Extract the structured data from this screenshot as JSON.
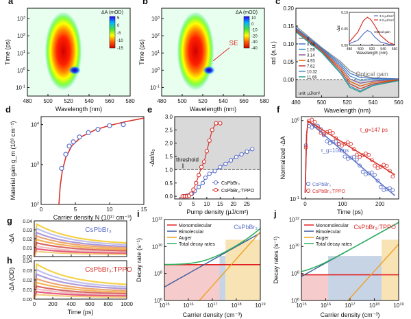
{
  "figure": {
    "panel_labels": [
      "a",
      "b",
      "c",
      "d",
      "e",
      "f",
      "g",
      "h",
      "i",
      "j"
    ]
  },
  "chart_data": [
    {
      "panel": "a",
      "type": "heatmap",
      "xlabel": "Wavelength (nm)",
      "ylabel": "Time (ps)",
      "x_ticks": [
        480,
        500,
        520,
        540,
        560,
        580
      ],
      "y_ticks": [
        "10^-1",
        "10^0",
        "10^1",
        "10^2",
        "10^3"
      ],
      "xlim": [
        480,
        580
      ],
      "ylim_log": [
        -1.5,
        3.6
      ],
      "colorbar_title": "ΔA (mOD)",
      "colorbar_ticks": [
        "5",
        "0",
        "-5",
        "-10",
        "-15"
      ],
      "features": [
        {
          "kind": "bleach",
          "center_nm": 515,
          "min_mOD": -15,
          "log_t_range": [
            -0.3,
            3.0
          ]
        },
        {
          "kind": "induced_absorption",
          "center_nm": 526,
          "log_t": 0.0,
          "max_mOD": 5
        }
      ]
    },
    {
      "panel": "b",
      "type": "heatmap",
      "xlabel": "Wavelength (nm)",
      "ylabel": "Time (ps)",
      "x_ticks": [
        480,
        500,
        520,
        540,
        560,
        580
      ],
      "y_ticks": [
        "10^-1",
        "10^0",
        "10^1",
        "10^2",
        "10^3"
      ],
      "xlim": [
        480,
        580
      ],
      "ylim_log": [
        -1.5,
        3.6
      ],
      "colorbar_title": "ΔA (mOD)",
      "colorbar_ticks": [
        "10",
        "0",
        "-10",
        "-20",
        "-30",
        "-40"
      ],
      "annotation": "SE",
      "features": [
        {
          "kind": "bleach",
          "center_nm": 513,
          "min_mOD": -40,
          "log_t_range": [
            -0.3,
            3.0
          ]
        },
        {
          "kind": "induced_absorption",
          "center_nm": 526,
          "log_t": 0.0,
          "max_mOD": 10
        }
      ]
    },
    {
      "panel": "c",
      "type": "line",
      "xlabel": "Wavelength (nm)",
      "ylabel": "αd (a.u.)",
      "xlim": [
        480,
        560
      ],
      "ylim": [
        -0.05,
        0.2
      ],
      "x_ticks": [
        480,
        500,
        520,
        540,
        560
      ],
      "y_ticks": [
        0.0,
        0.05,
        0.1,
        0.15,
        0.2
      ],
      "legend_values": [
        "0",
        "0.68",
        "1.59",
        "3.14",
        "4.93",
        "7.62",
        "10.32",
        "11.66"
      ],
      "legend_unit": "unit: μJ/cm²",
      "annotation": "Optical gain",
      "series_colors": [
        "#888888",
        "#4472c4",
        "#2e8bc0",
        "#8a5a9c",
        "#e06000",
        "#c0392b",
        "#5b8db8",
        "#2a9d8f"
      ],
      "series": [
        {
          "name": "0",
          "x": [
            480,
            500,
            515,
            522,
            530,
            540,
            560
          ],
          "values": [
            0.15,
            0.09,
            0.05,
            0.025,
            0.012,
            0.005,
            0.002
          ]
        },
        {
          "name": "0.68",
          "x": [
            480,
            500,
            515,
            522,
            530,
            540,
            560
          ],
          "values": [
            0.145,
            0.088,
            0.045,
            0.018,
            0.006,
            0.003,
            0.002
          ]
        },
        {
          "name": "1.59",
          "x": [
            480,
            500,
            515,
            522,
            530,
            540,
            560
          ],
          "values": [
            0.143,
            0.086,
            0.04,
            0.01,
            -0.002,
            0.0,
            0.001
          ]
        },
        {
          "name": "3.14",
          "x": [
            480,
            500,
            515,
            522,
            530,
            540,
            560
          ],
          "values": [
            0.141,
            0.084,
            0.035,
            0.002,
            -0.01,
            -0.004,
            0.0
          ]
        },
        {
          "name": "4.93",
          "x": [
            480,
            500,
            515,
            522,
            530,
            540,
            560
          ],
          "values": [
            0.139,
            0.082,
            0.03,
            -0.005,
            -0.018,
            -0.008,
            -0.001
          ]
        },
        {
          "name": "7.62",
          "x": [
            480,
            500,
            515,
            522,
            530,
            540,
            560
          ],
          "values": [
            0.137,
            0.08,
            0.025,
            -0.012,
            -0.026,
            -0.012,
            -0.002
          ]
        },
        {
          "name": "10.32",
          "x": [
            480,
            500,
            515,
            522,
            530,
            540,
            560
          ],
          "values": [
            0.135,
            0.078,
            0.02,
            -0.018,
            -0.032,
            -0.015,
            -0.003
          ]
        },
        {
          "name": "11.66",
          "x": [
            480,
            500,
            515,
            522,
            530,
            540,
            560
          ],
          "values": [
            0.133,
            0.076,
            0.016,
            -0.022,
            -0.035,
            -0.017,
            -0.003
          ]
        }
      ],
      "inset": {
        "xlabel": "Wavelength (nm)",
        "ylabel": "-Δα",
        "xlim": [
          480,
          560
        ],
        "ylim": [
          0,
          0.1
        ],
        "x_ticks": [
          480,
          500,
          520,
          540,
          560
        ],
        "y_ticks": [
          0.0,
          0.05,
          0.1
        ],
        "legend": [
          "3.1 μJ/cm²",
          "9.2 μJ/cm²"
        ],
        "annotation": "Optical gain",
        "series": [
          {
            "name": "3.1 μJ/cm²",
            "x": [
              480,
              495,
              505,
              512,
              518,
              525,
              535,
              550,
              560
            ],
            "values": [
              0.005,
              0.015,
              0.035,
              0.045,
              0.04,
              0.025,
              0.01,
              0.003,
              0.001
            ]
          },
          {
            "name": "9.2 μJ/cm²",
            "x": [
              480,
              495,
              505,
              512,
              518,
              525,
              535,
              550,
              560
            ],
            "values": [
              0.01,
              0.04,
              0.075,
              0.085,
              0.078,
              0.06,
              0.03,
              0.008,
              0.002
            ]
          }
        ]
      }
    },
    {
      "panel": "d",
      "type": "scatter",
      "xlabel": "Carrier density N (10¹⁷ cm⁻³)",
      "ylabel": "Material gain g_m (10³ cm⁻¹)",
      "xlim": [
        0,
        15
      ],
      "y_log_range": [
        2,
        4.2
      ],
      "x_ticks": [
        0,
        5,
        10,
        15
      ],
      "y_ticks": [
        "10^2",
        "10^3",
        "10^4"
      ],
      "points": {
        "x": [
          3.0,
          3.6,
          4.1,
          4.7,
          5.6,
          6.9,
          8.3,
          10.0,
          12.0
        ],
        "values": [
          800,
          1800,
          2900,
          3700,
          4900,
          6300,
          7600,
          9400,
          10000
        ]
      },
      "fit": {
        "x": [
          2.6,
          2.8,
          3.1,
          3.6,
          4.5,
          6,
          8,
          10,
          12.5,
          15
        ],
        "values": [
          100,
          300,
          700,
          1500,
          3000,
          5100,
          7500,
          9500,
          12000,
          14500
        ]
      }
    },
    {
      "panel": "e",
      "type": "line",
      "xlabel": "Pump density (μJ/cm²)",
      "ylabel": "-Δα/α₀",
      "xlim": [
        -2,
        30
      ],
      "ylim": [
        -0.1,
        3.0
      ],
      "x_ticks": [
        0,
        5,
        10,
        15,
        20,
        25
      ],
      "y_ticks": [
        0.0,
        0.5,
        1.0,
        1.5,
        2.0,
        2.5,
        3.0
      ],
      "annotation": "threshold",
      "threshold": 1.0,
      "series": [
        {
          "name": "CsPbBr₃",
          "color": "#5a6fc9",
          "x": [
            1.5,
            2.5,
            3.5,
            4.5,
            5.5,
            7,
            8.5,
            9.5,
            11,
            13,
            15,
            17,
            19,
            21,
            23,
            25,
            27
          ],
          "values": [
            0.0,
            0.02,
            0.05,
            0.1,
            0.2,
            0.35,
            0.5,
            0.7,
            0.85,
            0.95,
            1.1,
            1.22,
            1.35,
            1.48,
            1.58,
            1.68,
            1.78
          ]
        },
        {
          "name": "CsPbBr₃:TPPO",
          "color": "#d9302a",
          "x": [
            1.0,
            1.8,
            2.6,
            3.4,
            4.2,
            5.0,
            6.0,
            7.0,
            8.0,
            9.0,
            10.0,
            11.0,
            12.0,
            13.5,
            15.0
          ],
          "values": [
            0.0,
            0.0,
            0.0,
            0.02,
            0.1,
            0.25,
            0.5,
            0.8,
            1.1,
            1.3,
            1.7,
            2.1,
            2.5,
            2.75,
            2.75
          ]
        }
      ]
    },
    {
      "panel": "f",
      "type": "scatter",
      "xlabel": "Time (ps)",
      "ylabel": "Normalized -ΔA",
      "xlim": [
        -10,
        250
      ],
      "y_log_range": [
        -1,
        0
      ],
      "x_ticks": [
        0,
        100,
        200
      ],
      "y_ticks": [
        "10^-1",
        "10^0"
      ],
      "annotations": [
        "τ_g=147 ps",
        "τ_g=106 ps"
      ],
      "series": [
        {
          "name": "CsPbBr₃",
          "color": "#5a6fc9",
          "tau_ps": 106
        },
        {
          "name": "CsPbBr₃:TPPO",
          "color": "#d9302a",
          "tau_ps": 147
        }
      ]
    },
    {
      "panel": "g",
      "type": "line",
      "ylabel": "-ΔA",
      "xlim": [
        0,
        1000
      ],
      "ylim": [
        0,
        0.04
      ],
      "y_ticks": [
        0.0,
        0.01,
        0.02,
        0.03,
        0.04
      ],
      "x_ticks": [
        0,
        200,
        400,
        600,
        800,
        1000
      ],
      "label": "CsPbBr₃",
      "series_amplitudes": [
        0.038,
        0.033,
        0.028,
        0.024,
        0.02,
        0.016,
        0.012,
        0.009,
        0.006
      ],
      "series_colors": [
        "#f5c518",
        "#b0b0e8",
        "#9a7fd1",
        "#e89050",
        "#f0a030",
        "#d04040",
        "#e8b0b0",
        "#e03060",
        "#f0c060"
      ]
    },
    {
      "panel": "h",
      "type": "line",
      "xlabel": "Time (ps)",
      "ylabel": "-ΔA (OD)",
      "xlim": [
        0,
        1000
      ],
      "ylim": [
        0,
        0.04
      ],
      "y_ticks": [
        0.0,
        0.01,
        0.02,
        0.03,
        0.04
      ],
      "x_ticks": [
        0,
        200,
        400,
        600,
        800,
        1000
      ],
      "label": "CsPbBr₃:TPPO",
      "series_amplitudes": [
        0.038,
        0.032,
        0.027,
        0.022,
        0.018,
        0.014,
        0.011,
        0.008,
        0.005
      ],
      "series_colors": [
        "#f5c518",
        "#b0b0e8",
        "#9a7fd1",
        "#e89050",
        "#f0a030",
        "#d04040",
        "#e8b0b0",
        "#e03060",
        "#f0c060"
      ]
    },
    {
      "panel": "i",
      "type": "line",
      "xlabel": "Carrier density (cm⁻³)",
      "ylabel": "Decay rate (s⁻¹)",
      "x_log_range": [
        15,
        19
      ],
      "y_log_range": [
        6,
        12
      ],
      "x_ticks": [
        "10^15",
        "10^16",
        "10^17",
        "10^18",
        "10^19"
      ],
      "y_ticks": [
        "10^6",
        "10^8",
        "10^10",
        "10^12"
      ],
      "label": "CsPbBr₃",
      "legend": [
        "Monomolecular",
        "Bimolecular",
        "Auger",
        "Total decay rates"
      ],
      "region_bounds_log": [
        17.3,
        17.55
      ],
      "rates": {
        "k1": 450000000.0,
        "k2": 1e-08,
        "k3": 1.2e-27
      }
    },
    {
      "panel": "j",
      "type": "line",
      "xlabel": "Carrier density (cm⁻³)",
      "ylabel": "Decay rates (s⁻¹)",
      "x_log_range": [
        15,
        19
      ],
      "y_log_range": [
        6,
        12
      ],
      "x_ticks": [
        "10^15",
        "10^16",
        "10^17",
        "10^18",
        "10^19"
      ],
      "y_ticks": [
        "10^6",
        "10^8",
        "10^10",
        "10^12"
      ],
      "label": "CsPbBr₃:TPPO",
      "legend": [
        "Monomolecular",
        "Bimolecular",
        "Auger",
        "Total decay rates"
      ],
      "region_bounds_log": [
        16.1,
        18.3
      ],
      "rates": {
        "k1": 80000000.0,
        "k2": 6e-08,
        "k3": 1.5e-28
      }
    }
  ]
}
